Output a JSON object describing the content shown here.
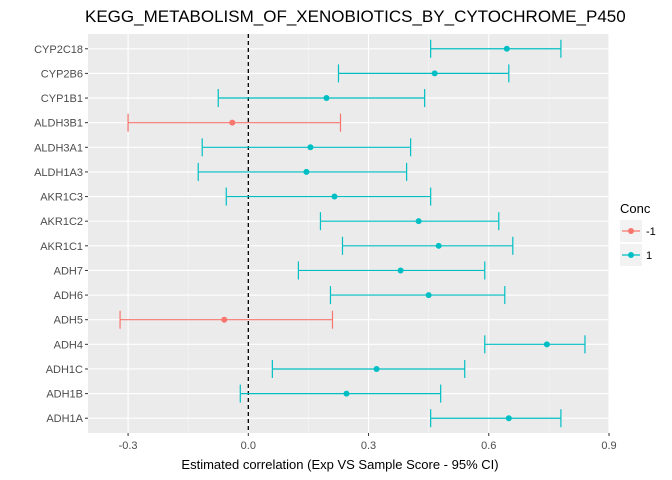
{
  "chart_data": {
    "type": "scatter",
    "title": "KEGG_METABOLISM_OF_XENOBIOTICS_BY_CYTOCHROME_P450",
    "xlabel": "Estimated correlation (Exp VS Sample Score - 95% CI)",
    "ylabel": "",
    "xlim": [
      -0.4,
      0.9
    ],
    "x_ticks": [
      -0.3,
      0.0,
      0.3,
      0.6,
      0.9
    ],
    "x_tick_labels": [
      "-0.3",
      "0.0",
      "0.3",
      "0.6",
      "0.9"
    ],
    "reference_line_x": 0,
    "grid": true,
    "legend": {
      "title": "Conc",
      "position": "right",
      "entries": [
        {
          "label": "-1",
          "color": "#F8766D"
        },
        {
          "label": "1",
          "color": "#00BFC4"
        }
      ]
    },
    "categories": [
      "CYP2C18",
      "CYP2B6",
      "CYP1B1",
      "ALDH3B1",
      "ALDH3A1",
      "ALDH1A3",
      "AKR1C3",
      "AKR1C2",
      "AKR1C1",
      "ADH7",
      "ADH6",
      "ADH5",
      "ADH4",
      "ADH1C",
      "ADH1B",
      "ADH1A"
    ],
    "points": [
      {
        "gene": "CYP2C18",
        "estimate": 0.645,
        "lower": 0.455,
        "upper": 0.78,
        "conc": "1"
      },
      {
        "gene": "CYP2B6",
        "estimate": 0.465,
        "lower": 0.225,
        "upper": 0.65,
        "conc": "1"
      },
      {
        "gene": "CYP1B1",
        "estimate": 0.195,
        "lower": -0.075,
        "upper": 0.44,
        "conc": "1"
      },
      {
        "gene": "ALDH3B1",
        "estimate": -0.04,
        "lower": -0.3,
        "upper": 0.23,
        "conc": "-1"
      },
      {
        "gene": "ALDH3A1",
        "estimate": 0.155,
        "lower": -0.115,
        "upper": 0.405,
        "conc": "1"
      },
      {
        "gene": "ALDH1A3",
        "estimate": 0.145,
        "lower": -0.125,
        "upper": 0.395,
        "conc": "1"
      },
      {
        "gene": "AKR1C3",
        "estimate": 0.215,
        "lower": -0.055,
        "upper": 0.455,
        "conc": "1"
      },
      {
        "gene": "AKR1C2",
        "estimate": 0.425,
        "lower": 0.18,
        "upper": 0.625,
        "conc": "1"
      },
      {
        "gene": "AKR1C1",
        "estimate": 0.475,
        "lower": 0.235,
        "upper": 0.66,
        "conc": "1"
      },
      {
        "gene": "ADH7",
        "estimate": 0.38,
        "lower": 0.125,
        "upper": 0.59,
        "conc": "1"
      },
      {
        "gene": "ADH6",
        "estimate": 0.45,
        "lower": 0.205,
        "upper": 0.64,
        "conc": "1"
      },
      {
        "gene": "ADH5",
        "estimate": -0.06,
        "lower": -0.32,
        "upper": 0.21,
        "conc": "-1"
      },
      {
        "gene": "ADH4",
        "estimate": 0.745,
        "lower": 0.59,
        "upper": 0.84,
        "conc": "1"
      },
      {
        "gene": "ADH1C",
        "estimate": 0.32,
        "lower": 0.06,
        "upper": 0.54,
        "conc": "1"
      },
      {
        "gene": "ADH1B",
        "estimate": 0.245,
        "lower": -0.02,
        "upper": 0.48,
        "conc": "1"
      },
      {
        "gene": "ADH1A",
        "estimate": 0.65,
        "lower": 0.455,
        "upper": 0.78,
        "conc": "1"
      }
    ]
  }
}
